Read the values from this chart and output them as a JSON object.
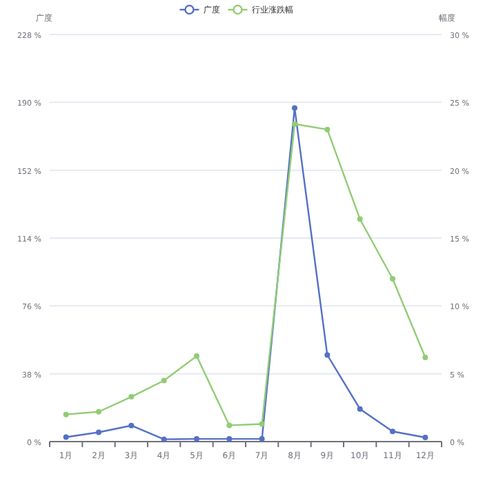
{
  "chart_data": {
    "type": "line",
    "categories": [
      "1月",
      "2月",
      "3月",
      "4月",
      "5月",
      "6月",
      "7月",
      "8月",
      "9月",
      "10月",
      "11月",
      "12月"
    ],
    "series": [
      {
        "name": "广度",
        "color": "#5470c6",
        "values": [
          2.5,
          5.2,
          9.0,
          1.3,
          1.5,
          1.5,
          1.5,
          186.8,
          48.5,
          18.3,
          5.7,
          2.3
        ]
      },
      {
        "name": "行业涨跌幅",
        "color": "#91cc75",
        "axis": "y2",
        "values": [
          2.0,
          2.2,
          3.3,
          4.5,
          6.3,
          1.2,
          1.3,
          23.4,
          23.0,
          16.4,
          12.0,
          6.2
        ]
      }
    ],
    "ylabel": "广度",
    "y2label": "幅度",
    "ylim": [
      0,
      228
    ],
    "yticks": [
      {
        "value": 0,
        "label": "0 %"
      },
      {
        "value": 38,
        "label": "38 %"
      },
      {
        "value": 76,
        "label": "76 %"
      },
      {
        "value": 114,
        "label": "114 %"
      },
      {
        "value": 152,
        "label": "152 %"
      },
      {
        "value": 190,
        "label": "190 %"
      },
      {
        "value": 228,
        "label": "228 %"
      }
    ],
    "y2lim": [
      0,
      30
    ],
    "y2ticks": [
      {
        "value": 0,
        "label": "0 %"
      },
      {
        "value": 5,
        "label": "5 %"
      },
      {
        "value": 10,
        "label": "10 %"
      },
      {
        "value": 15,
        "label": "15 %"
      },
      {
        "value": 20,
        "label": "20 %"
      },
      {
        "value": 25,
        "label": "25 %"
      },
      {
        "value": 30,
        "label": "30 %"
      }
    ],
    "grid": "y",
    "legend": "top",
    "marker": "circle"
  }
}
